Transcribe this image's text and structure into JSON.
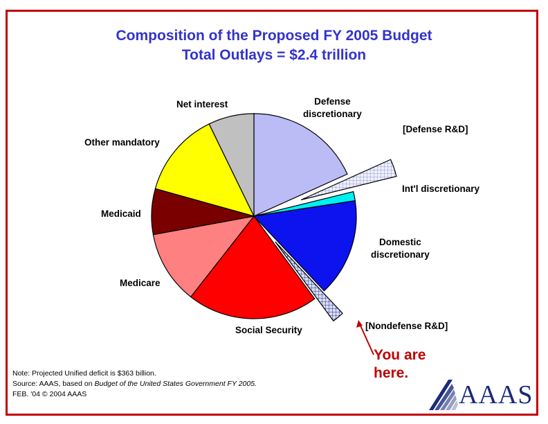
{
  "title": {
    "line1": "Composition of the Proposed FY 2005 Budget",
    "line2": "Total Outlays = $2.4 trillion"
  },
  "chart_data": {
    "type": "pie",
    "title": "Composition of the Proposed FY 2005 Budget",
    "subtitle": "Total Outlays = $2.4 trillion",
    "unit": "percent of total outlays (approx.)",
    "slices": [
      {
        "name": "Defense discretionary",
        "value": 19,
        "color": "#bbbbf5"
      },
      {
        "name": "[Defense R&D]",
        "value": 3,
        "color": "#dde0f2",
        "exploded": true,
        "parent": "Defense discretionary"
      },
      {
        "name": "Int'l discretionary",
        "value": 1.5,
        "color": "#00f0f0"
      },
      {
        "name": "Domestic discretionary",
        "value": 16,
        "color": "#0d13ee"
      },
      {
        "name": "[Nondefense R&D]",
        "value": 2,
        "color": "#c8cdf0",
        "exploded": true,
        "parent": "Domestic discretionary"
      },
      {
        "name": "Social Security",
        "value": 21.5,
        "color": "#ff0000"
      },
      {
        "name": "Medicare",
        "value": 12,
        "color": "#ff8080"
      },
      {
        "name": "Medicaid",
        "value": 7.5,
        "color": "#7a0000"
      },
      {
        "name": "Other mandatory",
        "value": 14,
        "color": "#ffff00"
      },
      {
        "name": "Net interest",
        "value": 7.5,
        "color": "#c0c0c0"
      }
    ]
  },
  "labels": {
    "defense": [
      "Defense",
      "discretionary"
    ],
    "defense_rd": "[Defense R&D]",
    "intl": "Int'l discretionary",
    "domestic": [
      "Domestic",
      "discretionary"
    ],
    "nondefense_rd": "[Nondefense R&D]",
    "social_security": "Social Security",
    "medicare": "Medicare",
    "medicaid": "Medicaid",
    "other_mandatory": "Other mandatory",
    "net_interest": "Net interest"
  },
  "notes": {
    "note_prefix": "Note:",
    "note_text": " Projected Unified deficit is $363 billion.",
    "source_prefix": "Source:",
    "source_text": " AAAS, based on ",
    "source_italic": "Budget of the United States Government FY  2005.",
    "date": "FEB. '04 © 2004 AAAS"
  },
  "callout": {
    "line1": "You are",
    "line2": "here."
  },
  "logo": {
    "text": "AAAS",
    "color": "#1a2a7a"
  }
}
